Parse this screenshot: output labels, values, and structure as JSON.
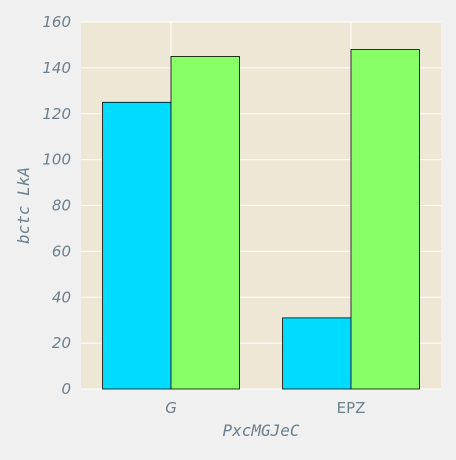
{
  "chart_data": {
    "type": "bar",
    "categories": [
      "G",
      "EPZ"
    ],
    "series": [
      {
        "values": [
          125,
          31
        ],
        "color": "#00dcff"
      },
      {
        "values": [
          145,
          148
        ],
        "color": "#88ff66"
      }
    ],
    "xlabel": "PxcMGJeC",
    "ylabel": "bctc LkA",
    "ylim": [
      0,
      160
    ],
    "yticks": [
      0,
      20,
      40,
      60,
      80,
      100,
      120,
      140,
      160
    ],
    "grid": true,
    "plot_background": "#efe7d5",
    "figure_background": "#f0f0f0",
    "text_color": "#6b7f8c"
  }
}
